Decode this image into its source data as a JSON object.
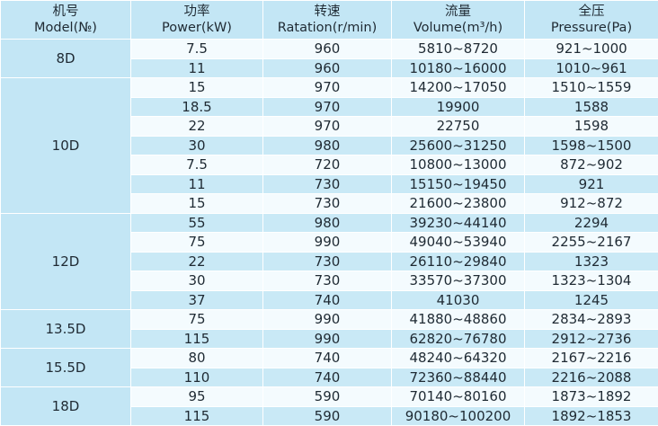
{
  "table": {
    "header": [
      [
        "机号",
        "Model(№)"
      ],
      [
        "功率",
        "Power(kW)"
      ],
      [
        "转速",
        "Ratation(r/min)"
      ],
      [
        "流量",
        "Volume(m³/h)"
      ],
      [
        "全压",
        "Pressure(Pa)"
      ]
    ],
    "groups": [
      {
        "model": "8D",
        "rows": [
          [
            "7.5",
            "960",
            "5810~8720",
            "921~1000"
          ],
          [
            "11",
            "960",
            "10180~16000",
            "1010~961"
          ]
        ]
      },
      {
        "model": "10D",
        "rows": [
          [
            "15",
            "970",
            "14200~17050",
            "1510~1559"
          ],
          [
            "18.5",
            "970",
            "19900",
            "1588"
          ],
          [
            "22",
            "970",
            "22750",
            "1598"
          ],
          [
            "30",
            "980",
            "25600~31250",
            "1598~1500"
          ],
          [
            "7.5",
            "720",
            "10800~13000",
            "872~902"
          ],
          [
            "11",
            "730",
            "15150~19450",
            "921"
          ],
          [
            "15",
            "730",
            "21600~23800",
            "912~872"
          ]
        ]
      },
      {
        "model": "12D",
        "rows": [
          [
            "55",
            "980",
            "39230~44140",
            "2294"
          ],
          [
            "75",
            "990",
            "49040~53940",
            "2255~2167"
          ],
          [
            "22",
            "730",
            "26110~29840",
            "1323"
          ],
          [
            "30",
            "730",
            "33570~37300",
            "1323~1304"
          ],
          [
            "37",
            "740",
            "41030",
            "1245"
          ]
        ]
      },
      {
        "model": "13.5D",
        "rows": [
          [
            "75",
            "990",
            "41880~48860",
            "2834~2893"
          ],
          [
            "115",
            "990",
            "62820~76780",
            "2912~2736"
          ]
        ]
      },
      {
        "model": "15.5D",
        "rows": [
          [
            "80",
            "740",
            "48240~64320",
            "2167~2216"
          ],
          [
            "110",
            "740",
            "72360~88440",
            "2216~2088"
          ]
        ]
      },
      {
        "model": "18D",
        "rows": [
          [
            "95",
            "590",
            "70140~80160",
            "1873~1892"
          ],
          [
            "115",
            "590",
            "90180~100200",
            "1892~1853"
          ]
        ]
      }
    ]
  }
}
